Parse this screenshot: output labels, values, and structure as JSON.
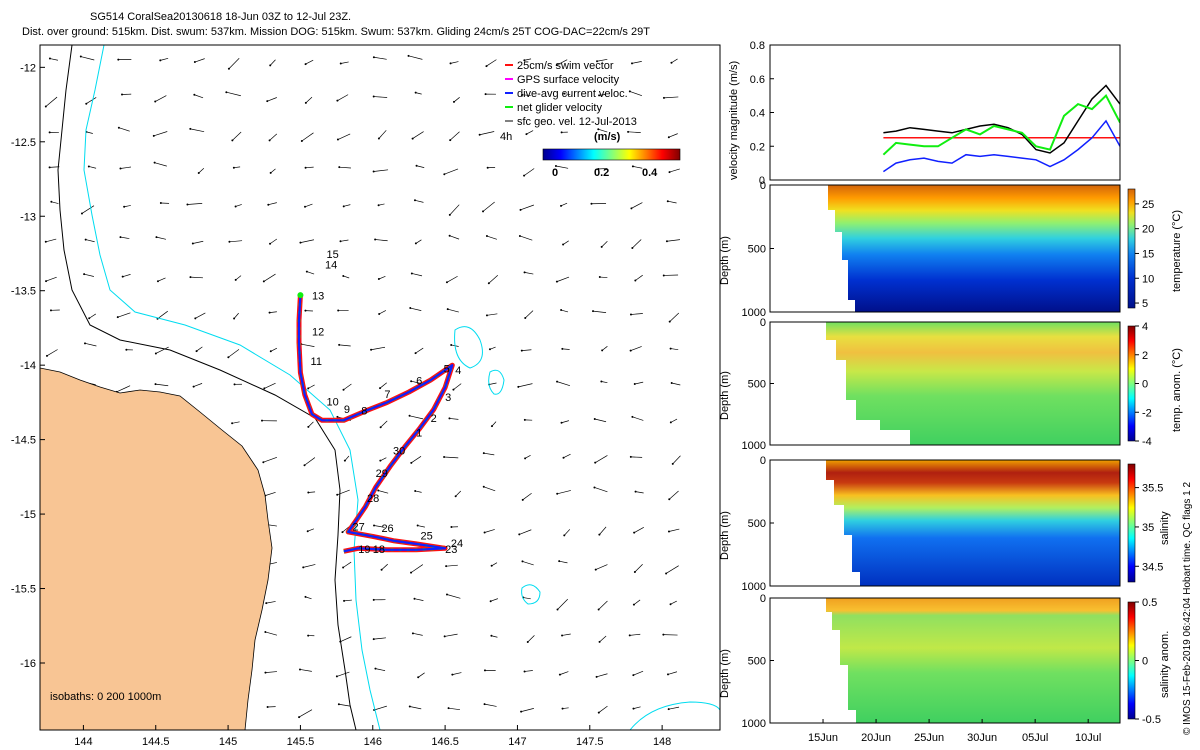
{
  "header": {
    "title_line1": "SG514 CoralSea20130618 18-Jun 03Z to 12-Jul 23Z.",
    "title_line2": "Dist. over ground: 515km. Dist. swum: 537km. Mission DOG: 515km. Swum: 537km. Gliding 24cm/s 25T COG-DAC=22cm/s 29T"
  },
  "footer": {
    "side_note": "© IMOS 15-Feb-2019 06:42:04 Hobart time. QC flags 1  2",
    "isobaths": "isobaths: 0   200  1000m"
  },
  "colors": {
    "land": "#f8c594",
    "coast_line": "#000000",
    "isobath_200": "#000000",
    "isobath_1000": "#00dcf0",
    "track_dac": "#1020ff",
    "track_swim": "#ff1010",
    "net_velocity": "#10ee10",
    "gps_velocity": "#ff00ff",
    "sfc_geo": "#000000"
  },
  "chart_data": [
    {
      "id": "map",
      "type": "scatter",
      "title": "Glider track and velocity vectors",
      "xlabel": "",
      "ylabel": "",
      "xlim": [
        143.7,
        148.4
      ],
      "ylim": [
        -16.45,
        -11.85
      ],
      "x_ticks": [
        144,
        144.5,
        145,
        145.5,
        146,
        146.5,
        147,
        147.5,
        148
      ],
      "x_tick_labels": [
        "144",
        "144.5",
        "145",
        "145.5",
        "146",
        "146.5",
        "147",
        "147.5",
        "148"
      ],
      "y_ticks": [
        -12,
        -12.5,
        -13,
        -13.5,
        -14,
        -14.5,
        -15,
        -15.5,
        -16
      ],
      "y_tick_labels": [
        "-12",
        "-12.5",
        "-13",
        "-13.5",
        "-14",
        "-14.5",
        "-15",
        "-15.5",
        "-16"
      ],
      "legend": {
        "placement": "top-right",
        "entries": [
          "25cm/s swim vector",
          "GPS surface velocity",
          "dive-avg current veloc.",
          "net glider velocity",
          "sfc geo. vel. 12-Jul-2013"
        ],
        "hour_label": "4h",
        "colorbar_label": "(m/s)",
        "colorbar_ticks": [
          "0",
          "0.2",
          "0.4"
        ]
      },
      "track": [
        [
          145.5,
          -13.53
        ],
        [
          145.49,
          -13.7
        ],
        [
          145.49,
          -13.85
        ],
        [
          145.5,
          -14.05
        ],
        [
          145.53,
          -14.2
        ],
        [
          145.58,
          -14.33
        ],
        [
          145.65,
          -14.37
        ],
        [
          145.8,
          -14.37
        ],
        [
          145.97,
          -14.3
        ],
        [
          146.1,
          -14.25
        ],
        [
          146.25,
          -14.18
        ],
        [
          146.4,
          -14.1
        ],
        [
          146.55,
          -14.0
        ],
        [
          146.5,
          -14.15
        ],
        [
          146.42,
          -14.3
        ],
        [
          146.32,
          -14.43
        ],
        [
          146.22,
          -14.55
        ],
        [
          146.12,
          -14.68
        ],
        [
          146.02,
          -14.82
        ],
        [
          145.95,
          -14.95
        ],
        [
          145.88,
          -15.05
        ],
        [
          145.83,
          -15.12
        ],
        [
          146.0,
          -15.15
        ],
        [
          146.15,
          -15.18
        ],
        [
          146.3,
          -15.2
        ],
        [
          146.5,
          -15.23
        ],
        [
          146.3,
          -15.24
        ],
        [
          146.1,
          -15.24
        ],
        [
          145.9,
          -15.23
        ],
        [
          145.8,
          -15.25
        ]
      ],
      "day_labels": [
        {
          "text": "15",
          "lon": 145.68,
          "lat": -13.28
        },
        {
          "text": "14",
          "lon": 145.67,
          "lat": -13.35
        },
        {
          "text": "13",
          "lon": 145.58,
          "lat": -13.56
        },
        {
          "text": "12",
          "lon": 145.58,
          "lat": -13.8
        },
        {
          "text": "11",
          "lon": 145.57,
          "lat": -14.0
        },
        {
          "text": "10",
          "lon": 145.68,
          "lat": -14.27
        },
        {
          "text": "9",
          "lon": 145.8,
          "lat": -14.32
        },
        {
          "text": "8",
          "lon": 145.92,
          "lat": -14.33
        },
        {
          "text": "7",
          "lon": 146.08,
          "lat": -14.22
        },
        {
          "text": "6",
          "lon": 146.3,
          "lat": -14.13
        },
        {
          "text": "5",
          "lon": 146.49,
          "lat": -14.05
        },
        {
          "text": "4",
          "lon": 146.57,
          "lat": -14.06
        },
        {
          "text": "3",
          "lon": 146.5,
          "lat": -14.24
        },
        {
          "text": "2",
          "lon": 146.4,
          "lat": -14.38
        },
        {
          "text": "1",
          "lon": 146.3,
          "lat": -14.48
        },
        {
          "text": "30",
          "lon": 146.14,
          "lat": -14.6
        },
        {
          "text": "29",
          "lon": 146.02,
          "lat": -14.75
        },
        {
          "text": "28",
          "lon": 145.96,
          "lat": -14.92
        },
        {
          "text": "27",
          "lon": 145.86,
          "lat": -15.11
        },
        {
          "text": "26",
          "lon": 146.06,
          "lat": -15.12
        },
        {
          "text": "25",
          "lon": 146.33,
          "lat": -15.17
        },
        {
          "text": "24",
          "lon": 146.54,
          "lat": -15.22
        },
        {
          "text": "23",
          "lon": 146.5,
          "lat": -15.26
        },
        {
          "text": "19",
          "lon": 145.9,
          "lat": -15.26
        },
        {
          "text": "18",
          "lon": 146.0,
          "lat": -15.26
        }
      ]
    },
    {
      "id": "velocity",
      "type": "line",
      "title": "",
      "xlabel": "",
      "ylabel": "velocity magnitude (m/s)",
      "xlim": [
        10,
        35
      ],
      "ylim": [
        0,
        0.8
      ],
      "y_ticks": [
        0,
        0.2,
        0.4,
        0.6,
        0.8
      ],
      "y_tick_labels": [
        "0",
        "0.2",
        "0.4",
        "0.6",
        "0.8"
      ],
      "x": [
        18.1,
        19,
        20,
        21,
        22,
        23,
        24,
        25,
        26,
        27,
        28,
        29,
        30,
        31,
        32,
        33,
        34,
        35
      ],
      "series": [
        {
          "name": "25cm/s swim vector",
          "color": "#ff1010",
          "values": [
            0.25,
            0.25,
            0.25,
            0.25,
            0.25,
            0.25,
            0.25,
            0.25,
            0.25,
            0.25,
            0.25,
            0.25,
            0.25,
            0.25,
            0.25,
            0.25,
            0.25,
            0.25
          ]
        },
        {
          "name": "sfc geo. vel.",
          "color": "#000000",
          "values": [
            0.28,
            0.29,
            0.31,
            0.3,
            0.29,
            0.28,
            0.3,
            0.32,
            0.33,
            0.31,
            0.27,
            0.18,
            0.16,
            0.22,
            0.35,
            0.48,
            0.56,
            0.45
          ]
        },
        {
          "name": "net glider velocity",
          "color": "#10ee10",
          "values": [
            0.15,
            0.22,
            0.21,
            0.2,
            0.2,
            0.25,
            0.3,
            0.27,
            0.32,
            0.3,
            0.28,
            0.2,
            0.18,
            0.38,
            0.45,
            0.42,
            0.5,
            0.34
          ]
        },
        {
          "name": "dive-avg current veloc.",
          "color": "#1020ff",
          "values": [
            0.05,
            0.1,
            0.12,
            0.13,
            0.11,
            0.1,
            0.15,
            0.14,
            0.15,
            0.14,
            0.13,
            0.12,
            0.08,
            0.12,
            0.18,
            0.25,
            0.35,
            0.2
          ]
        }
      ]
    },
    {
      "id": "temperature",
      "type": "heatmap",
      "ylabel": "Depth (m)",
      "colorbar_label": "temperature (°C)",
      "ylim": [
        1000,
        0
      ],
      "y_ticks": [
        0,
        500,
        1000
      ],
      "y_tick_labels": [
        "0",
        "500",
        "1000"
      ],
      "colorbar_ticks": [
        5,
        10,
        15,
        20,
        25
      ],
      "colorbar_tick_labels": [
        "5",
        "10",
        "15",
        "20",
        "25"
      ],
      "colorbar_range": [
        4,
        28
      ]
    },
    {
      "id": "temp_anom",
      "type": "heatmap",
      "ylabel": "Depth (m)",
      "colorbar_label": "temp. anom. (°C)",
      "ylim": [
        1000,
        0
      ],
      "y_ticks": [
        0,
        500,
        1000
      ],
      "y_tick_labels": [
        "0",
        "500",
        "1000"
      ],
      "colorbar_ticks": [
        -4,
        -2,
        0,
        2,
        4
      ],
      "colorbar_tick_labels": [
        "-4",
        "-2",
        "0",
        "2",
        "4"
      ],
      "colorbar_range": [
        -4,
        4
      ]
    },
    {
      "id": "salinity",
      "type": "heatmap",
      "ylabel": "Depth (m)",
      "colorbar_label": "salinity",
      "ylim": [
        1000,
        0
      ],
      "y_ticks": [
        0,
        500,
        1000
      ],
      "y_tick_labels": [
        "0",
        "500",
        "1000"
      ],
      "colorbar_ticks": [
        34.5,
        35,
        35.5
      ],
      "colorbar_tick_labels": [
        "34.5",
        "35",
        "35.5"
      ],
      "colorbar_range": [
        34.3,
        35.8
      ]
    },
    {
      "id": "salinity_anom",
      "type": "heatmap",
      "ylabel": "Depth (m)",
      "colorbar_label": "salinity anom.",
      "ylim": [
        1000,
        0
      ],
      "y_ticks": [
        0,
        500,
        1000
      ],
      "y_tick_labels": [
        "0",
        "500",
        "1000"
      ],
      "colorbar_ticks": [
        -0.5,
        0,
        0.5
      ],
      "colorbar_tick_labels": [
        "-0.5",
        "0",
        "0.5"
      ],
      "colorbar_range": [
        -0.5,
        0.5
      ],
      "x_ticks": [
        15,
        20,
        25,
        30,
        35,
        40
      ],
      "x_tick_labels": [
        "15Jun",
        "20Jun",
        "25Jun",
        "30Jun",
        "05Jul",
        "10Jul"
      ]
    }
  ]
}
